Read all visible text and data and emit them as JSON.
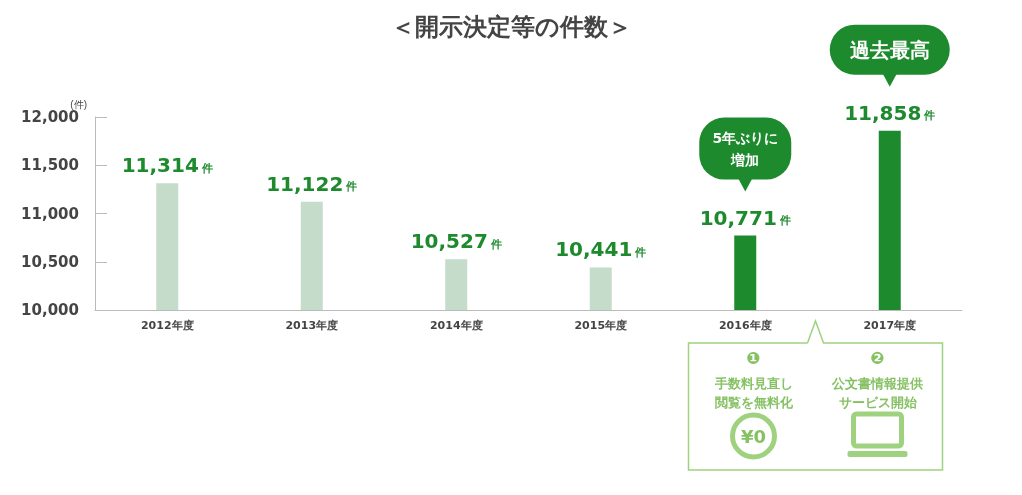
{
  "chart_data": {
    "type": "bar",
    "title": "＜開示決定等の件数＞",
    "ylabel": "(件)",
    "categories": [
      "2012年度",
      "2013年度",
      "2014年度",
      "2015年度",
      "2016年度",
      "2017年度"
    ],
    "values": [
      11314,
      11122,
      10527,
      10441,
      10771,
      11858
    ],
    "colors": [
      "#c5dccb",
      "#c5dccb",
      "#c5dccb",
      "#c5dccb",
      "#1e8a2e",
      "#1e8a2e"
    ],
    "value_labels": [
      "11,314件",
      "11,122件",
      "10,527件",
      "10,441件",
      "10,771件",
      "11,858件"
    ],
    "ylim": [
      10000,
      12000
    ],
    "yticks": [
      {
        "value": 10000,
        "label": "10,000"
      },
      {
        "value": 10500,
        "label": "10,500"
      },
      {
        "value": 11000,
        "label": "11,000"
      },
      {
        "value": 11500,
        "label": "11,500"
      },
      {
        "value": 12000,
        "label": "12,000"
      }
    ],
    "grid": false,
    "annotations": [
      "5年ぶりに増加",
      "過去最高",
      "❶",
      "手数料見直し閲覧を無料化",
      "❷",
      "公文書情報提供サービス開始",
      "¥0"
    ]
  }
}
